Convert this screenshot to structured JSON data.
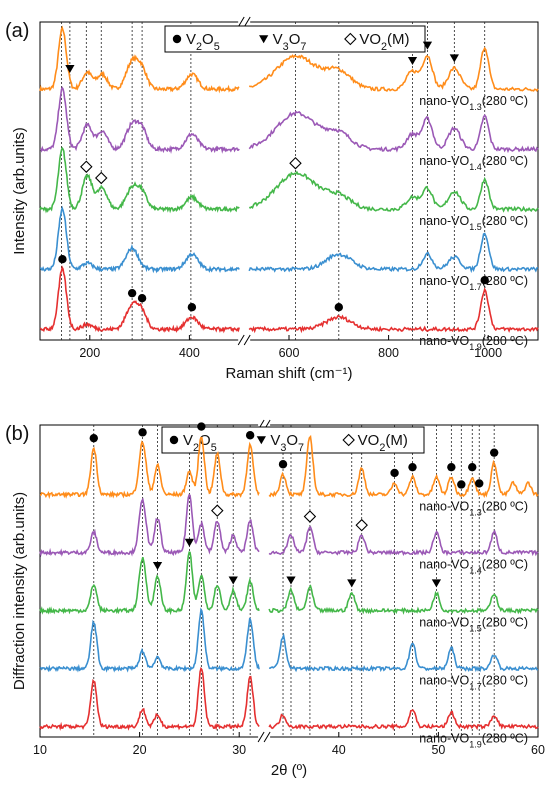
{
  "chart_data": [
    {
      "panel": "(a)",
      "type": "line",
      "xlabel": "Raman shift (cm⁻¹)",
      "ylabel": "Intensity (arb.units)",
      "xlim": [
        100,
        1100
      ],
      "axis_break": [
        500,
        520
      ],
      "x_ticks": [
        200,
        400,
        600,
        800,
        1000
      ],
      "legend": [
        {
          "symbol": "●",
          "label": "V2O5"
        },
        {
          "symbol": "▼",
          "label": "V3O7"
        },
        {
          "symbol": "◇",
          "label": "VO2(M)"
        }
      ],
      "reference_lines": [
        143,
        160,
        193,
        223,
        285,
        305,
        403,
        613,
        700,
        848,
        878,
        932,
        993
      ],
      "series": [
        {
          "name": "nano-VO1.3(280 ºC)",
          "sub": "1.3",
          "temp": "(280 ºC)",
          "color": "#ff8c1a",
          "peaks": [
            [
              145,
              1.0,
              8
            ],
            [
              195,
              0.28,
              10
            ],
            [
              225,
              0.25,
              10
            ],
            [
              285,
              0.45,
              12
            ],
            [
              305,
              0.3,
              10
            ],
            [
              405,
              0.25,
              12
            ],
            [
              615,
              0.55,
              40
            ],
            [
              700,
              0.28,
              25
            ],
            [
              848,
              0.3,
              12
            ],
            [
              878,
              0.55,
              10
            ],
            [
              932,
              0.35,
              12
            ],
            [
              993,
              0.7,
              8
            ]
          ]
        },
        {
          "name": "nano-VO1.4(280 ºC)",
          "sub": "1.4",
          "temp": "(280 ºC)",
          "color": "#9b59b6",
          "peaks": [
            [
              145,
              1.0,
              8
            ],
            [
              195,
              0.4,
              10
            ],
            [
              225,
              0.3,
              10
            ],
            [
              285,
              0.4,
              12
            ],
            [
              305,
              0.3,
              10
            ],
            [
              405,
              0.25,
              12
            ],
            [
              615,
              0.6,
              40
            ],
            [
              700,
              0.25,
              25
            ],
            [
              848,
              0.25,
              12
            ],
            [
              878,
              0.5,
              10
            ],
            [
              932,
              0.35,
              12
            ],
            [
              993,
              0.55,
              8
            ]
          ]
        },
        {
          "name": "nano-VO1.5(280 ºC)",
          "sub": "1.5",
          "temp": "(280 ºC)",
          "color": "#44b749",
          "peaks": [
            [
              145,
              1.0,
              8
            ],
            [
              195,
              0.55,
              10
            ],
            [
              225,
              0.35,
              10
            ],
            [
              285,
              0.35,
              12
            ],
            [
              305,
              0.25,
              10
            ],
            [
              405,
              0.2,
              12
            ],
            [
              615,
              0.6,
              40
            ],
            [
              700,
              0.2,
              25
            ],
            [
              848,
              0.2,
              12
            ],
            [
              878,
              0.35,
              10
            ],
            [
              932,
              0.3,
              12
            ],
            [
              993,
              0.5,
              8
            ]
          ]
        },
        {
          "name": "nano-VO1.7(280 ºC)",
          "sub": "1.7",
          "temp": "(280 ºC)",
          "color": "#3a8fd0",
          "peaks": [
            [
              145,
              1.0,
              8
            ],
            [
              195,
              0.1,
              10
            ],
            [
              285,
              0.35,
              12
            ],
            [
              405,
              0.25,
              12
            ],
            [
              700,
              0.25,
              25
            ],
            [
              878,
              0.25,
              10
            ],
            [
              932,
              0.2,
              12
            ],
            [
              993,
              0.6,
              8
            ]
          ]
        },
        {
          "name": "nano-VO1.9(280 ºC)",
          "sub": "1.9",
          "temp": "(280 ºC)",
          "color": "#e53030",
          "peaks": [
            [
              145,
              1.0,
              8
            ],
            [
              195,
              0.08,
              10
            ],
            [
              285,
              0.4,
              12
            ],
            [
              305,
              0.25,
              10
            ],
            [
              405,
              0.2,
              12
            ],
            [
              700,
              0.2,
              25
            ],
            [
              993,
              0.65,
              8
            ]
          ]
        }
      ],
      "markers": [
        {
          "series": 0,
          "x": 160,
          "symbol": "tri"
        },
        {
          "series": 0,
          "x": 848,
          "symbol": "tri"
        },
        {
          "series": 0,
          "x": 878,
          "symbol": "tri"
        },
        {
          "series": 0,
          "x": 932,
          "symbol": "tri"
        },
        {
          "series": 2,
          "x": 193,
          "symbol": "diamond"
        },
        {
          "series": 2,
          "x": 223,
          "symbol": "diamond"
        },
        {
          "series": 2,
          "x": 613,
          "symbol": "diamond"
        },
        {
          "series": 4,
          "x": 145,
          "symbol": "dot"
        },
        {
          "series": 4,
          "x": 285,
          "symbol": "dot"
        },
        {
          "series": 4,
          "x": 305,
          "symbol": "dot"
        },
        {
          "series": 4,
          "x": 405,
          "symbol": "dot"
        },
        {
          "series": 4,
          "x": 700,
          "symbol": "dot"
        },
        {
          "series": 4,
          "x": 993,
          "symbol": "dot"
        }
      ]
    },
    {
      "panel": "(b)",
      "type": "line",
      "xlabel": "2θ (º)",
      "ylabel": "Diffraction intensity (arb.units)",
      "xlim": [
        10,
        60
      ],
      "axis_break": [
        32,
        33
      ],
      "x_ticks": [
        10,
        20,
        30,
        40,
        50,
        60
      ],
      "legend": [
        {
          "symbol": "●",
          "label": "V2O5"
        },
        {
          "symbol": "▼",
          "label": "V3O7"
        },
        {
          "symbol": "◇",
          "label": "VO2(M)"
        }
      ],
      "reference_lines": [
        15.4,
        20.3,
        21.8,
        25.0,
        26.2,
        27.8,
        29.4,
        31.1,
        34.4,
        35.2,
        37.1,
        41.3,
        42.3,
        45.6,
        47.4,
        49.8,
        51.3,
        52.3,
        53.4,
        54.1,
        55.6
      ],
      "series": [
        {
          "name": "nano-VO1.3(280 ºC)",
          "sub": "1.3",
          "temp": "(280 ºC)",
          "color": "#ff8c1a",
          "peaks": [
            [
              15.4,
              0.8,
              0.3
            ],
            [
              20.3,
              0.9,
              0.35
            ],
            [
              21.8,
              0.5,
              0.3
            ],
            [
              25.0,
              0.4,
              0.3
            ],
            [
              26.2,
              1.0,
              0.3
            ],
            [
              27.8,
              0.7,
              0.3
            ],
            [
              31.1,
              0.85,
              0.3
            ],
            [
              34.4,
              0.35,
              0.3
            ],
            [
              37.1,
              1.0,
              0.3
            ],
            [
              42.3,
              0.45,
              0.3
            ],
            [
              45.6,
              0.2,
              0.3
            ],
            [
              47.4,
              0.3,
              0.3
            ],
            [
              49.8,
              0.3,
              0.3
            ],
            [
              51.3,
              0.3,
              0.3
            ],
            [
              53.4,
              0.3,
              0.3
            ],
            [
              55.6,
              0.55,
              0.3
            ],
            [
              57.5,
              0.2,
              0.3
            ],
            [
              59.0,
              0.2,
              0.3
            ]
          ]
        },
        {
          "name": "nano-VO1.4(280 ºC)",
          "sub": "1.4",
          "temp": "(280 ºC)",
          "color": "#9b59b6",
          "peaks": [
            [
              15.4,
              0.35,
              0.3
            ],
            [
              20.3,
              0.9,
              0.35
            ],
            [
              21.8,
              0.6,
              0.3
            ],
            [
              25.0,
              1.0,
              0.3
            ],
            [
              26.2,
              0.5,
              0.3
            ],
            [
              27.8,
              0.55,
              0.3
            ],
            [
              29.4,
              0.3,
              0.3
            ],
            [
              31.1,
              0.55,
              0.3
            ],
            [
              35.2,
              0.3,
              0.3
            ],
            [
              37.1,
              0.45,
              0.3
            ],
            [
              42.3,
              0.3,
              0.3
            ],
            [
              49.8,
              0.35,
              0.3
            ],
            [
              55.6,
              0.35,
              0.3
            ]
          ]
        },
        {
          "name": "nano-VO1.5(280 ºC)",
          "sub": "1.5",
          "temp": "(280 ºC)",
          "color": "#44b749",
          "peaks": [
            [
              15.4,
              0.45,
              0.3
            ],
            [
              20.3,
              0.9,
              0.35
            ],
            [
              21.8,
              0.6,
              0.3
            ],
            [
              25.0,
              1.0,
              0.3
            ],
            [
              26.2,
              0.6,
              0.3
            ],
            [
              27.8,
              0.45,
              0.3
            ],
            [
              29.4,
              0.35,
              0.3
            ],
            [
              31.1,
              0.5,
              0.3
            ],
            [
              35.2,
              0.35,
              0.3
            ],
            [
              37.1,
              0.4,
              0.3
            ],
            [
              41.3,
              0.3,
              0.3
            ],
            [
              49.8,
              0.3,
              0.3
            ],
            [
              55.6,
              0.3,
              0.3
            ]
          ]
        },
        {
          "name": "nano-VO1.7(280 ºC)",
          "sub": "1.7",
          "temp": "(280 ºC)",
          "color": "#3a8fd0",
          "peaks": [
            [
              15.4,
              0.8,
              0.3
            ],
            [
              20.3,
              0.3,
              0.3
            ],
            [
              21.8,
              0.2,
              0.3
            ],
            [
              26.2,
              1.0,
              0.3
            ],
            [
              31.1,
              0.85,
              0.3
            ],
            [
              34.4,
              0.55,
              0.3
            ],
            [
              47.4,
              0.45,
              0.3
            ],
            [
              51.3,
              0.35,
              0.3
            ],
            [
              55.6,
              0.25,
              0.3
            ]
          ]
        },
        {
          "name": "nano-VO1.9(280 ºC)",
          "sub": "1.9",
          "temp": "(280 ºC)",
          "color": "#e53030",
          "peaks": [
            [
              15.4,
              0.8,
              0.3
            ],
            [
              20.3,
              0.3,
              0.3
            ],
            [
              21.8,
              0.2,
              0.3
            ],
            [
              26.2,
              1.0,
              0.3
            ],
            [
              31.1,
              0.85,
              0.3
            ],
            [
              34.4,
              0.2,
              0.3
            ],
            [
              47.4,
              0.3,
              0.3
            ],
            [
              51.3,
              0.25,
              0.3
            ],
            [
              55.6,
              0.2,
              0.3
            ]
          ]
        }
      ],
      "markers": [
        {
          "series": 0,
          "x": 15.4,
          "symbol": "dot"
        },
        {
          "series": 0,
          "x": 20.3,
          "symbol": "dot"
        },
        {
          "series": 0,
          "x": 26.2,
          "symbol": "dot"
        },
        {
          "series": 0,
          "x": 31.1,
          "symbol": "dot"
        },
        {
          "series": 0,
          "x": 34.4,
          "symbol": "dot"
        },
        {
          "series": 0,
          "x": 45.6,
          "symbol": "dot"
        },
        {
          "series": 0,
          "x": 47.4,
          "symbol": "dot"
        },
        {
          "series": 0,
          "x": 51.3,
          "symbol": "dot"
        },
        {
          "series": 0,
          "x": 52.3,
          "symbol": "dot"
        },
        {
          "series": 0,
          "x": 53.4,
          "symbol": "dot"
        },
        {
          "series": 0,
          "x": 54.1,
          "symbol": "dot"
        },
        {
          "series": 0,
          "x": 55.6,
          "symbol": "dot"
        },
        {
          "series": 1,
          "x": 27.8,
          "symbol": "diamond"
        },
        {
          "series": 1,
          "x": 37.1,
          "symbol": "diamond"
        },
        {
          "series": 1,
          "x": 42.3,
          "symbol": "diamond"
        },
        {
          "series": 2,
          "x": 21.8,
          "symbol": "tri"
        },
        {
          "series": 2,
          "x": 25.0,
          "symbol": "tri"
        },
        {
          "series": 2,
          "x": 29.4,
          "symbol": "tri"
        },
        {
          "series": 2,
          "x": 35.2,
          "symbol": "tri"
        },
        {
          "series": 2,
          "x": 41.3,
          "symbol": "tri"
        },
        {
          "series": 2,
          "x": 49.8,
          "symbol": "tri"
        }
      ]
    }
  ]
}
